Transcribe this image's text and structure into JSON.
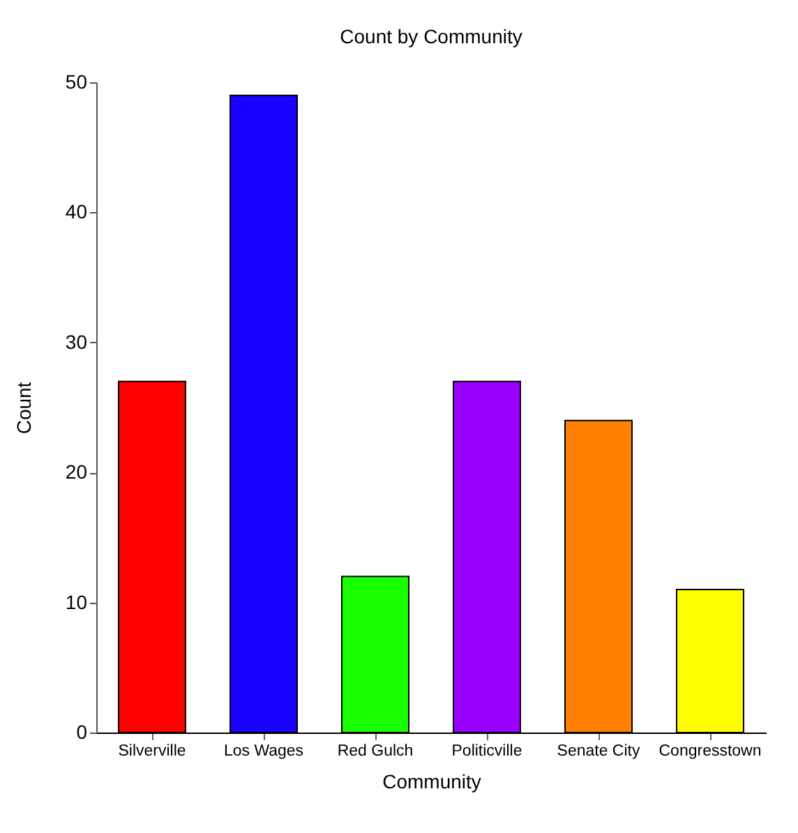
{
  "chart_data": {
    "type": "bar",
    "title": "Count by Community",
    "xlabel": "Community",
    "ylabel": "Count",
    "categories": [
      "Silverville",
      "Los Wages",
      "Red Gulch",
      "Politicville",
      "Senate City",
      "Congresstown"
    ],
    "values": [
      27,
      49,
      12,
      27,
      24,
      11
    ],
    "colors": [
      "#ff0000",
      "#1a00ff",
      "#1aff00",
      "#9900ff",
      "#ff8000",
      "#ffff00"
    ],
    "ylim": [
      0,
      50
    ],
    "yticks": [
      0,
      10,
      20,
      30,
      40,
      50
    ],
    "grid": false
  }
}
